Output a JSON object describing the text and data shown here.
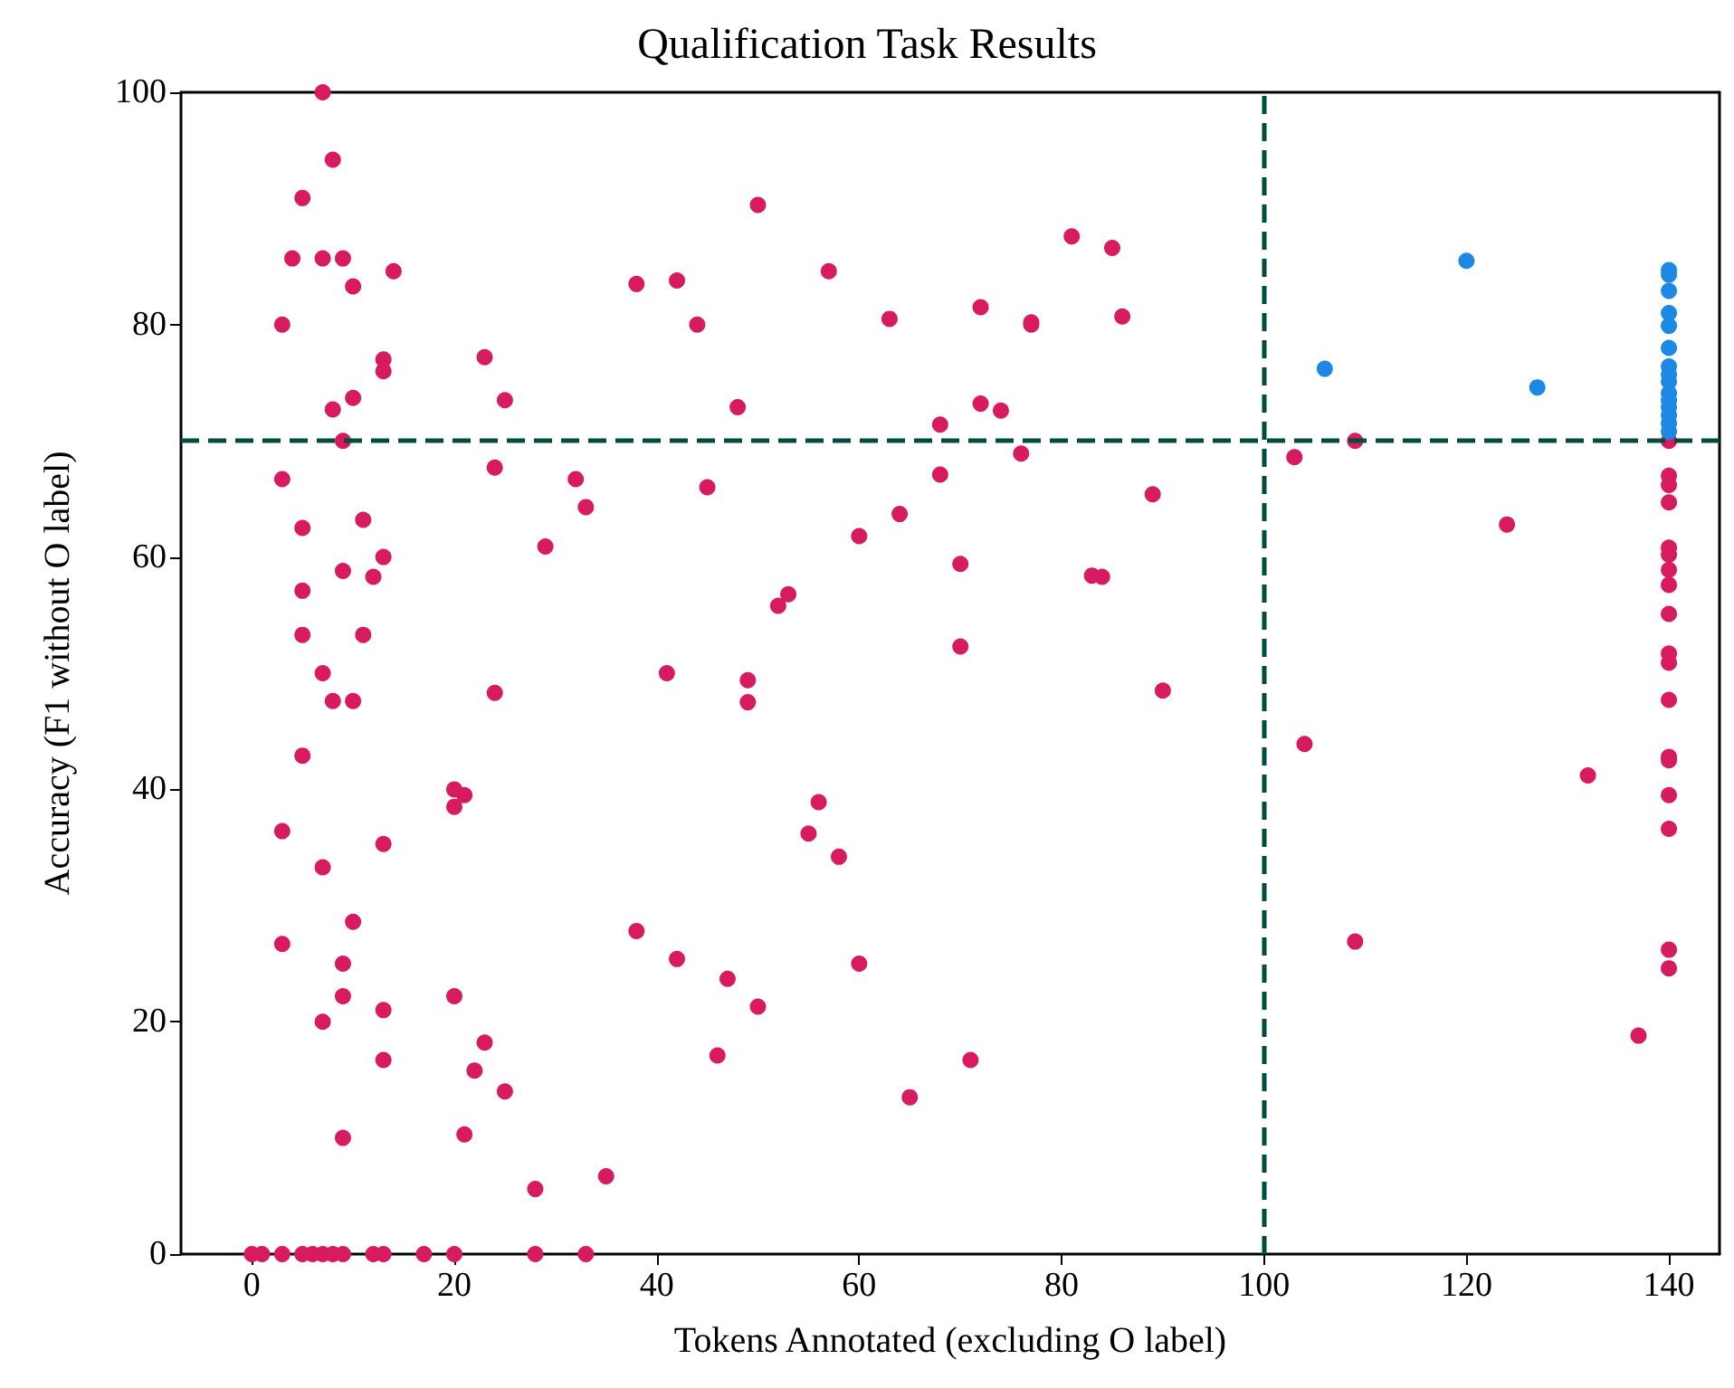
{
  "chart_data": {
    "type": "scatter",
    "title": "Qualification Task Results",
    "xlabel": "Tokens Annotated (excluding O label)",
    "ylabel": "Accuracy (F1 without O label)",
    "xlim": [
      -7,
      145
    ],
    "ylim": [
      0,
      100
    ],
    "xticks": [
      0,
      20,
      40,
      60,
      80,
      100,
      120,
      140
    ],
    "yticks": [
      0,
      20,
      40,
      60,
      80,
      100
    ],
    "grid": false,
    "marker": "circle",
    "ref_lines": [
      {
        "axis": "x",
        "value": 100,
        "color": "#004d40",
        "line_style": "dashed"
      },
      {
        "axis": "y",
        "value": 70,
        "color": "#004d40",
        "line_style": "dashed"
      }
    ],
    "series": [
      {
        "color": "#d81b60",
        "x": [
          3,
          4,
          5,
          7,
          8,
          7,
          9,
          10,
          14,
          13,
          13,
          8,
          10,
          9,
          3,
          5,
          11,
          12,
          9,
          13,
          5,
          5,
          11,
          7,
          8,
          10,
          5,
          3,
          13,
          7,
          10,
          3,
          9,
          9,
          13,
          7,
          13,
          9,
          20,
          20,
          21,
          20,
          23,
          22,
          21,
          25,
          23,
          25,
          24,
          24,
          29,
          32,
          33,
          28,
          35,
          38,
          42,
          44,
          50,
          48,
          45,
          41,
          38,
          42,
          47,
          46,
          50,
          49,
          49,
          52,
          53,
          57,
          55,
          56,
          58,
          60,
          60,
          65,
          63,
          64,
          68,
          68,
          70,
          70,
          71,
          72,
          72,
          74,
          76,
          77,
          77,
          81,
          83,
          84,
          85,
          86,
          89,
          90,
          103,
          104,
          109,
          109,
          124,
          132,
          137,
          140,
          140,
          140,
          140,
          140,
          140,
          140,
          140,
          140,
          140,
          140,
          140,
          140,
          140,
          140,
          140,
          140,
          140,
          0,
          1,
          3,
          5,
          6,
          7,
          8,
          9,
          12,
          13,
          17,
          20,
          28,
          33
        ],
        "values": [
          80,
          85.7,
          90.9,
          100,
          94.2,
          85.7,
          85.7,
          83.3,
          84.6,
          77,
          76,
          72.7,
          73.7,
          70,
          66.7,
          62.5,
          63.2,
          58.3,
          58.8,
          60,
          57.1,
          53.3,
          53.3,
          50,
          47.6,
          47.6,
          42.9,
          36.4,
          35.3,
          33.3,
          28.6,
          26.7,
          25,
          22.2,
          21,
          20,
          16.7,
          10,
          40,
          38.5,
          39.5,
          22.2,
          18.2,
          15.8,
          10.3,
          14,
          77.2,
          73.5,
          67.7,
          48.3,
          60.9,
          66.7,
          64.3,
          5.6,
          6.7,
          83.5,
          83.8,
          80,
          90.3,
          72.9,
          66,
          50,
          27.8,
          25.4,
          23.7,
          17.1,
          21.3,
          49.4,
          47.5,
          55.8,
          56.8,
          84.6,
          36.2,
          38.9,
          34.2,
          61.8,
          25,
          13.5,
          80.5,
          63.7,
          71.4,
          67.1,
          59.4,
          52.3,
          16.7,
          81.5,
          73.2,
          72.6,
          68.9,
          80.2,
          80,
          87.6,
          58.4,
          58.3,
          86.6,
          80.7,
          65.4,
          48.5,
          68.6,
          43.9,
          70,
          26.9,
          62.8,
          41.2,
          18.8,
          70,
          67,
          66.2,
          64.7,
          60.8,
          60.2,
          58.9,
          57.6,
          55.1,
          51.7,
          50.9,
          47.7,
          42.8,
          42.5,
          39.5,
          36.6,
          26.2,
          24.6,
          0,
          0,
          0,
          0,
          0,
          0,
          0,
          0,
          0,
          0,
          0,
          0,
          0,
          0
        ]
      },
      {
        "color": "#1e88e5",
        "x": [
          106,
          120,
          127,
          140,
          140,
          140,
          140,
          140,
          140,
          140,
          140,
          140,
          140,
          140,
          140,
          140,
          140,
          140
        ],
        "values": [
          76.2,
          85.5,
          74.6,
          84.7,
          84.3,
          82.9,
          81,
          79.9,
          78,
          76.4,
          75.7,
          75.1,
          74.1,
          73.5,
          72.9,
          72.2,
          71.5,
          70.8
        ]
      }
    ]
  }
}
